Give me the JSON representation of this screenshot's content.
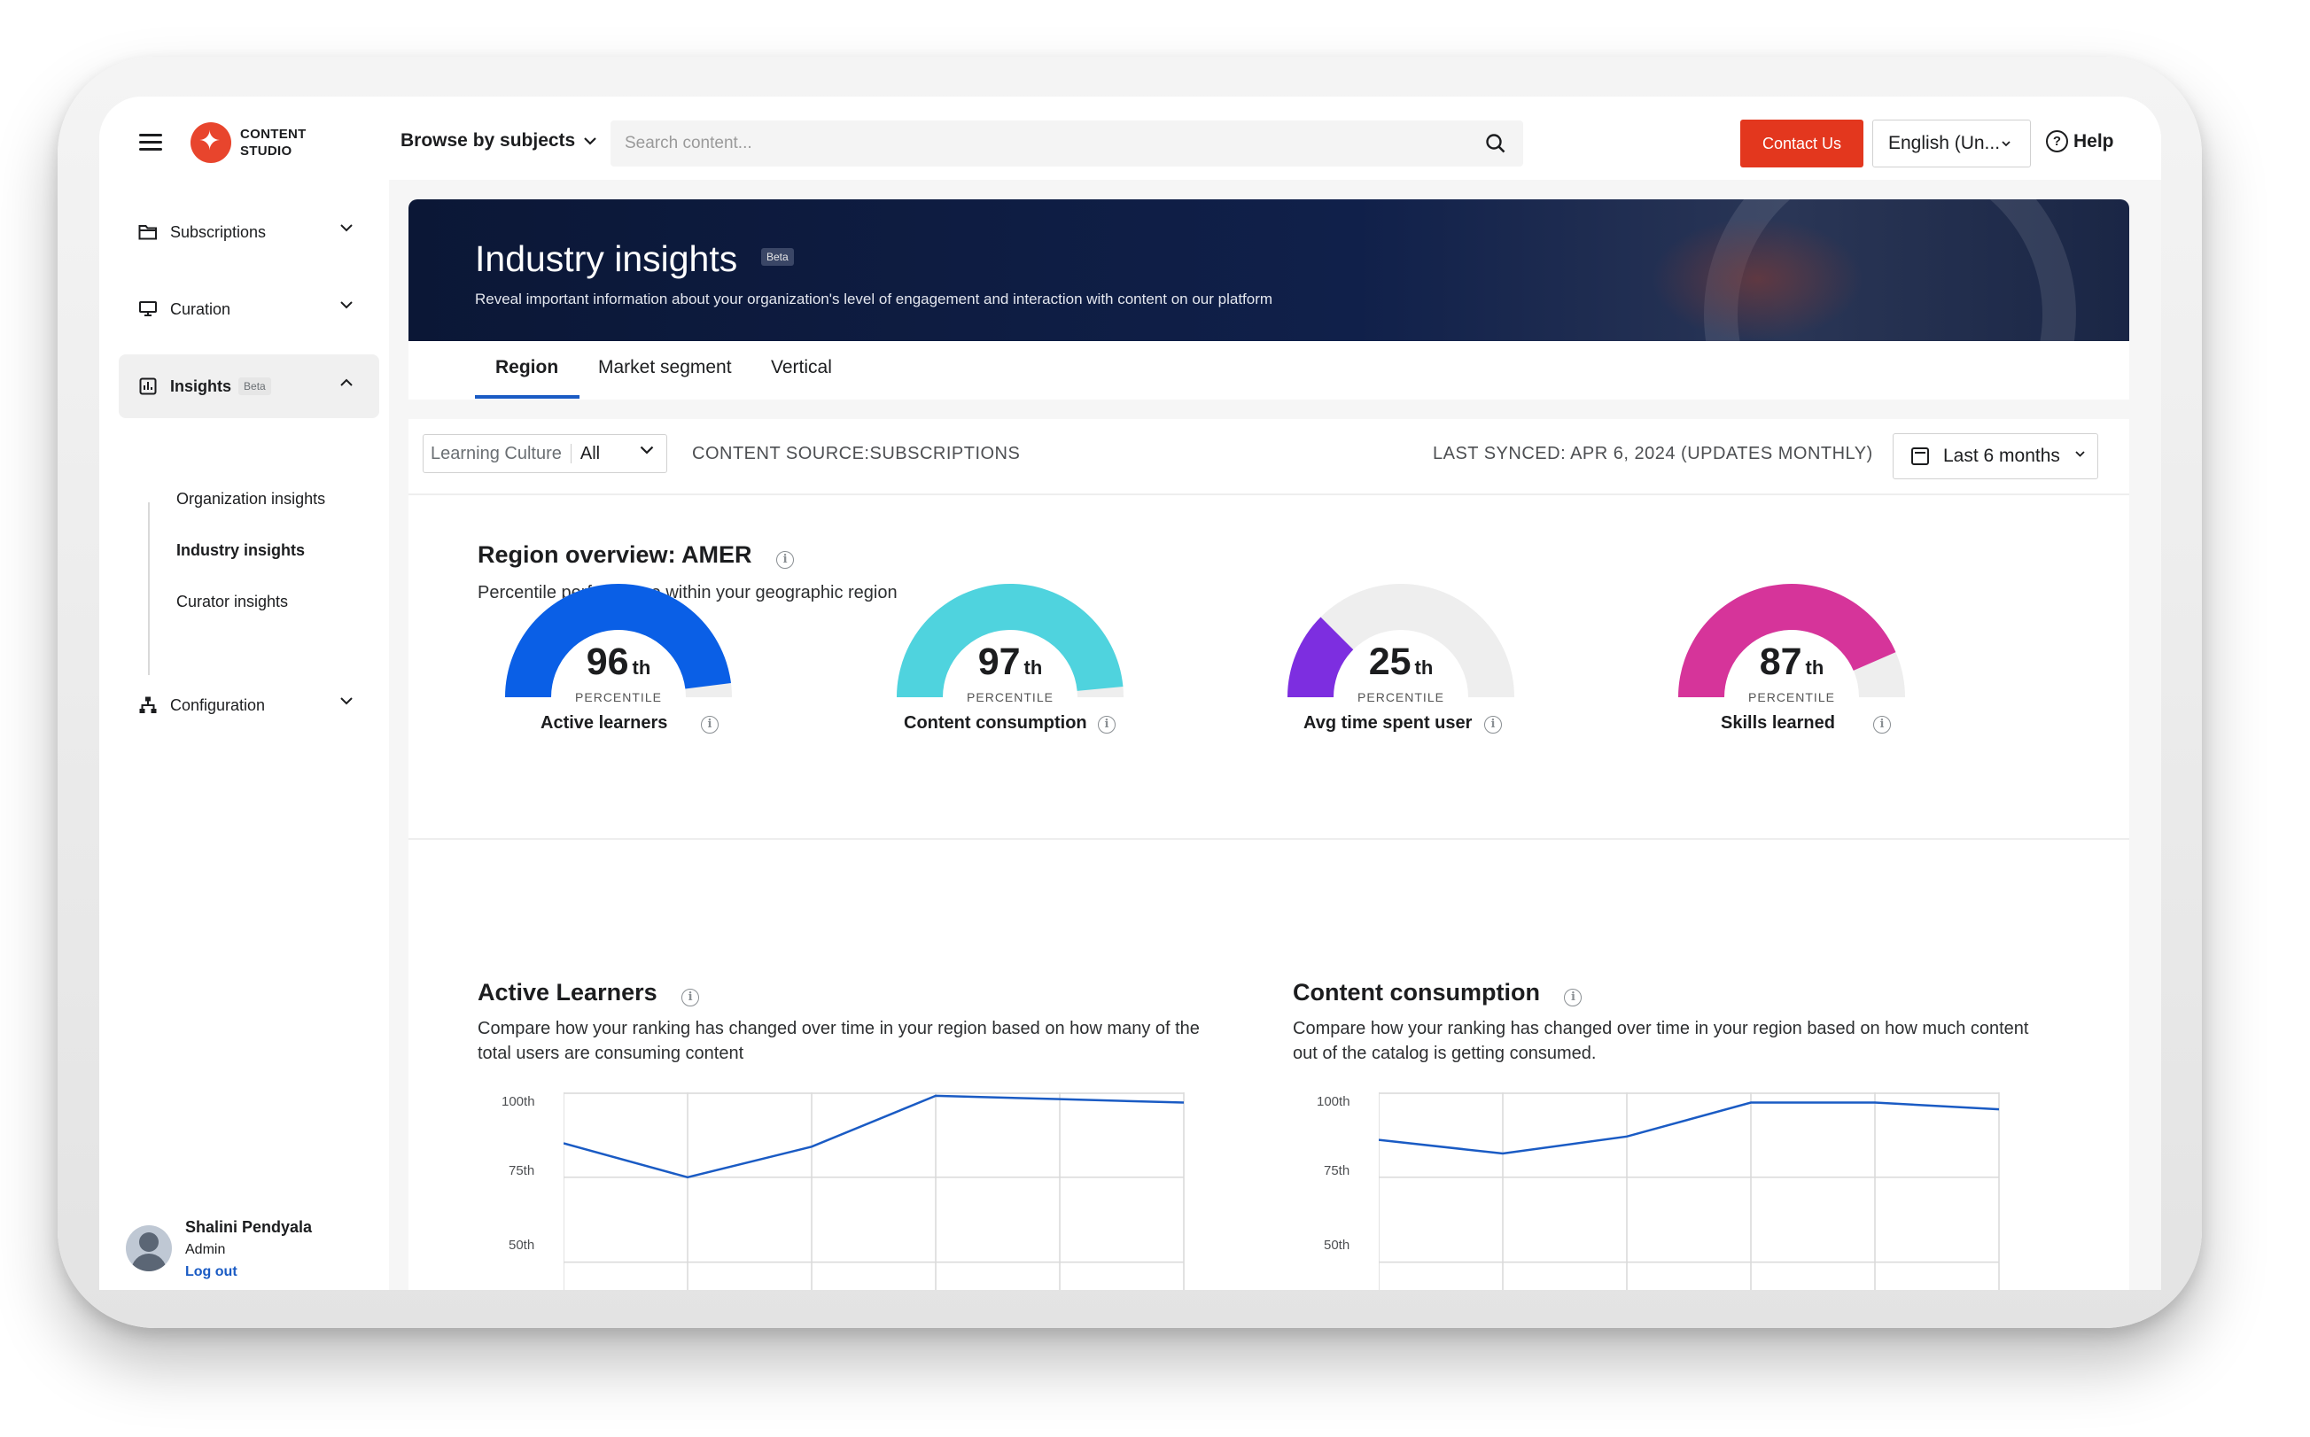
{
  "app": {
    "brand_line1": "CONTENT",
    "brand_line2": "STUDIO",
    "browse_label": "Browse by subjects",
    "search_placeholder": "Search content...",
    "contact_label": "Contact Us",
    "language": "English (Un...",
    "help_label": "Help"
  },
  "sidebar": {
    "items": [
      {
        "label": "Subscriptions",
        "icon": "folder-icon"
      },
      {
        "label": "Curation",
        "icon": "monitor-icon"
      },
      {
        "label": "Insights",
        "icon": "bar-chart-icon",
        "badge": "Beta",
        "expanded": true
      },
      {
        "label": "Configuration",
        "icon": "hierarchy-icon"
      }
    ],
    "sub_items": [
      "Organization insights",
      "Industry insights",
      "Curator insights"
    ],
    "user": {
      "name": "Shalini Pendyala",
      "role": "Admin",
      "logout": "Log out"
    }
  },
  "hero": {
    "title": "Industry insights",
    "badge": "Beta",
    "subtitle": "Reveal important information about your organization's level of engagement and interaction with content on our platform"
  },
  "tabs": [
    "Region",
    "Market segment",
    "Vertical"
  ],
  "filters": {
    "learning_label": "Learning Culture",
    "learning_value": "All",
    "source": "CONTENT SOURCE:SUBSCRIPTIONS",
    "synced": "LAST SYNCED: APR 6, 2024 (UPDATES MONTHLY)",
    "range": "Last 6 months"
  },
  "overview": {
    "title": "Region overview: AMER",
    "subtitle": "Percentile performance within your geographic region",
    "gauges": [
      {
        "value": 96,
        "suffix": "th",
        "unit": "PERCENTILE",
        "label": "Active learners",
        "color": "#0a5fe6"
      },
      {
        "value": 97,
        "suffix": "th",
        "unit": "PERCENTILE",
        "label": "Content consumption",
        "color": "#4fd3de"
      },
      {
        "value": 25,
        "suffix": "th",
        "unit": "PERCENTILE",
        "label": "Avg time spent user",
        "color": "#7d2ee0"
      },
      {
        "value": 87,
        "suffix": "th",
        "unit": "PERCENTILE",
        "label": "Skills learned",
        "color": "#d6349a"
      }
    ]
  },
  "charts_section": {
    "left_title": "Active Learners",
    "left_sub_line1": "Compare how your ranking has changed over time in your region based on how many of the",
    "left_sub_line2": "total users are consuming content",
    "right_title": "Content consumption",
    "right_sub_line1": "Compare how your ranking has changed over time in your region based on how much content",
    "right_sub_line2": "out of the catalog is getting consumed."
  },
  "chart_data": [
    {
      "type": "line",
      "title": "Active Learners",
      "y_ticks": [
        "100th",
        "75th",
        "50th"
      ],
      "ylim": [
        40,
        100
      ],
      "x": [
        0,
        1,
        2,
        3,
        4,
        5
      ],
      "series": [
        {
          "values": [
            85,
            75,
            84,
            99,
            98,
            97
          ],
          "color": "#1a5bc4"
        }
      ]
    },
    {
      "type": "line",
      "title": "Content consumption",
      "y_ticks": [
        "100th",
        "75th",
        "50th"
      ],
      "ylim": [
        40,
        100
      ],
      "x": [
        0,
        1,
        2,
        3,
        4,
        5
      ],
      "series": [
        {
          "values": [
            86,
            82,
            87,
            97,
            97,
            95
          ],
          "color": "#1a5bc4"
        }
      ]
    }
  ]
}
